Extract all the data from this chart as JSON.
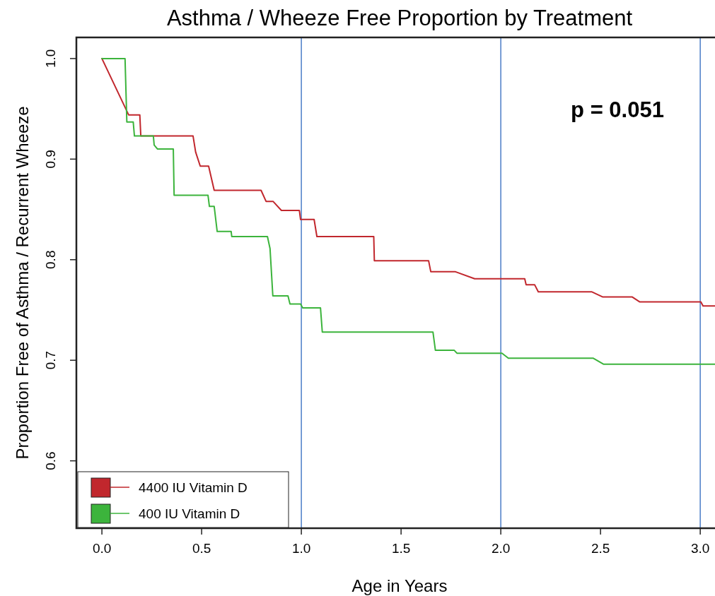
{
  "chart_data": {
    "type": "line",
    "title": "Asthma / Wheeze Free Proportion by Treatment",
    "xlabel": "Age in Years",
    "ylabel": "Proportion Free of Asthma / Recurrent Wheeze",
    "xlim": [
      -0.128,
      3.074
    ],
    "ylim": [
      0.533,
      1.021
    ],
    "xticks": [
      {
        "value": 0,
        "label": "0.0"
      },
      0.5,
      {
        "value": 1,
        "label": "1.0"
      },
      1.5,
      {
        "value": 2,
        "label": "2.0"
      },
      2.5,
      {
        "value": 3,
        "label": "3.0"
      }
    ],
    "yticks": [
      {
        "value": 0.6,
        "label": "0.6"
      },
      {
        "value": 0.7,
        "label": "0.7"
      },
      {
        "value": 0.8,
        "label": "0.8"
      },
      {
        "value": 0.9,
        "label": "0.9"
      },
      {
        "value": 1.0,
        "label": "1.0"
      }
    ],
    "series": [
      {
        "name": "4400 IU Vitamin D",
        "color": "#c1272d",
        "x": [
          0,
          0.134,
          0.19,
          0.195,
          0.457,
          0.47,
          0.493,
          0.535,
          0.563,
          0.798,
          0.823,
          0.858,
          0.9,
          0.99,
          0.996,
          1.064,
          1.078,
          1.363,
          1.366,
          1.638,
          1.649,
          1.773,
          1.869,
          2.12,
          2.127,
          2.17,
          2.188,
          2.457,
          2.51,
          2.658,
          2.697,
          3.003,
          3.014,
          3.074
        ],
        "values": [
          1.0,
          0.944,
          0.944,
          0.923,
          0.923,
          0.907,
          0.893,
          0.893,
          0.869,
          0.869,
          0.858,
          0.858,
          0.849,
          0.849,
          0.84,
          0.84,
          0.823,
          0.823,
          0.799,
          0.799,
          0.788,
          0.788,
          0.781,
          0.781,
          0.775,
          0.775,
          0.768,
          0.768,
          0.763,
          0.763,
          0.758,
          0.758,
          0.754,
          0.754
        ]
      },
      {
        "name": "400 IU Vitamin D",
        "color": "#3cb43c",
        "x": [
          0,
          0.116,
          0.125,
          0.157,
          0.163,
          0.258,
          0.262,
          0.279,
          0.358,
          0.362,
          0.532,
          0.539,
          0.563,
          0.578,
          0.648,
          0.651,
          0.83,
          0.843,
          0.857,
          0.933,
          0.943,
          0.996,
          1.007,
          1.096,
          1.105,
          1.66,
          1.672,
          1.766,
          1.78,
          2.006,
          2.038,
          2.464,
          2.516,
          3.074
        ],
        "values": [
          1.0,
          1.0,
          0.937,
          0.937,
          0.923,
          0.923,
          0.914,
          0.91,
          0.91,
          0.864,
          0.864,
          0.853,
          0.853,
          0.828,
          0.828,
          0.823,
          0.823,
          0.811,
          0.764,
          0.764,
          0.756,
          0.756,
          0.752,
          0.752,
          0.728,
          0.728,
          0.71,
          0.71,
          0.707,
          0.707,
          0.702,
          0.702,
          0.696,
          0.696
        ]
      }
    ],
    "ref_lines": [
      {
        "axis": "x",
        "value": 1,
        "color": "#4a7cc7"
      },
      {
        "axis": "x",
        "value": 2,
        "color": "#4a7cc7"
      },
      {
        "axis": "x",
        "value": 3,
        "color": "#4a7cc7"
      }
    ],
    "annotations": [
      "p = 0.051"
    ],
    "legend": "bottom left",
    "grid": false,
    "marker": "none",
    "line_style": "solid"
  }
}
